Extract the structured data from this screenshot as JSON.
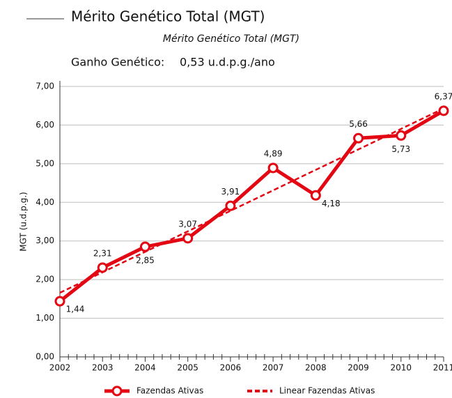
{
  "chart_data": {
    "type": "line",
    "title": "Mérito Genético Total (MGT)",
    "subtitle": "Mérito Genético Total (MGT)",
    "annotation_label": "Ganho Genético:",
    "annotation_value": "0,53 u.d.p.g./ano",
    "ylabel": "MGT (u.d.p.g.)",
    "categories": [
      "2002",
      "2003",
      "2004",
      "2005",
      "2006",
      "2007",
      "2008",
      "2009",
      "2010",
      "2011"
    ],
    "series": [
      {
        "name": "Fazendas Ativas",
        "color": "#e30613",
        "style": "solid-marker",
        "values": [
          1.44,
          2.31,
          2.85,
          3.07,
          3.91,
          4.89,
          4.18,
          5.66,
          5.73,
          6.37
        ],
        "value_labels": [
          "1,44",
          "2,31",
          "2,85",
          "3,07",
          "3,91",
          "4,89",
          "4,18",
          "5,66",
          "5,73",
          "6,37"
        ]
      },
      {
        "name": "Linear Fazendas Ativas",
        "color": "#e30613",
        "style": "dashed",
        "values": [
          1.66,
          2.19,
          2.72,
          3.25,
          3.78,
          4.31,
          4.84,
          5.37,
          5.9,
          6.43
        ]
      }
    ],
    "ylim": [
      0,
      7
    ],
    "yticks": [
      {
        "value": 0,
        "label": "0,00"
      },
      {
        "value": 1,
        "label": "1,00"
      },
      {
        "value": 2,
        "label": "2,00"
      },
      {
        "value": 3,
        "label": "3,00"
      },
      {
        "value": 4,
        "label": "4,00"
      },
      {
        "value": 5,
        "label": "5,00"
      },
      {
        "value": 6,
        "label": "6,00"
      },
      {
        "value": 7,
        "label": "7,00"
      }
    ],
    "grid": true,
    "legend": "bottom"
  }
}
